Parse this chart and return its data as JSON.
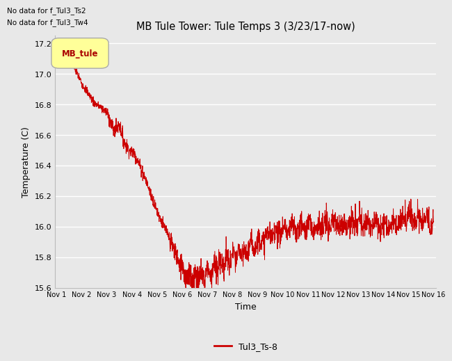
{
  "title": "MB Tule Tower: Tule Temps 3 (3/23/17-now)",
  "xlabel": "Time",
  "ylabel": "Temperature (C)",
  "no_data_text": [
    "No data for f_Tul3_Ts2",
    "No data for f_Tul3_Tw4"
  ],
  "legend_box_label": "MB_tule",
  "legend_box_color": "#ffff99",
  "legend_box_border": "#aaaaaa",
  "legend_box_text_color": "#aa0000",
  "line_color": "#cc0000",
  "line_label": "Tul3_Ts-8",
  "ylim": [
    15.6,
    17.25
  ],
  "yticks": [
    15.6,
    15.8,
    16.0,
    16.2,
    16.4,
    16.6,
    16.8,
    17.0,
    17.2
  ],
  "background_color": "#e8e8e8",
  "plot_bg_color": "#e8e8e8",
  "x_start": 0,
  "x_end": 15,
  "xtick_labels": [
    "Nov 1",
    "Nov 2",
    "Nov 3",
    "Nov 4",
    "Nov 5",
    "Nov 6",
    "Nov 7",
    "Nov 8",
    "Nov 9",
    "Nov 10",
    "Nov 11",
    "Nov 12",
    "Nov 13",
    "Nov 14",
    "Nov 15",
    "Nov 16"
  ],
  "xtick_positions": [
    0,
    1,
    2,
    3,
    4,
    5,
    6,
    7,
    8,
    9,
    10,
    11,
    12,
    13,
    14,
    15
  ]
}
